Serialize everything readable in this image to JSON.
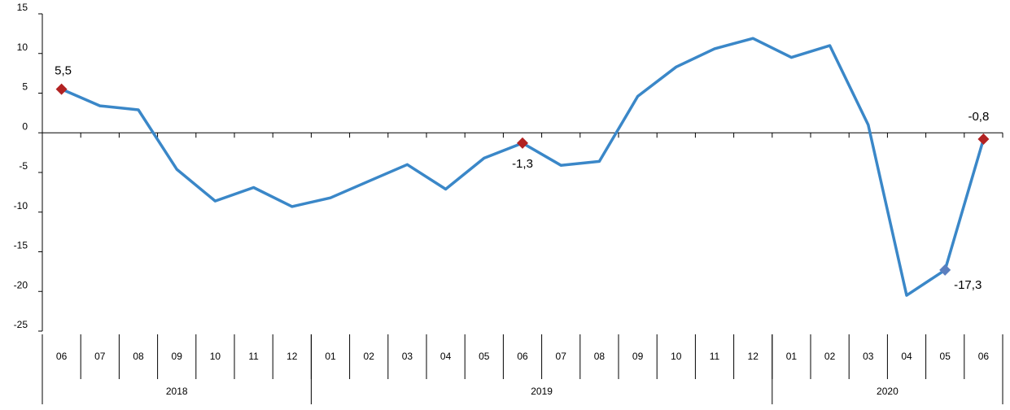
{
  "chart_data": {
    "type": "line",
    "title": "",
    "xlabel": "",
    "ylabel": "",
    "ylim": [
      -25,
      15
    ],
    "yticks": [
      15,
      10,
      5,
      0,
      -5,
      -10,
      -15,
      -20,
      -25
    ],
    "grid": false,
    "x": [
      "06",
      "07",
      "08",
      "09",
      "10",
      "11",
      "12",
      "01",
      "02",
      "03",
      "04",
      "05",
      "06",
      "07",
      "08",
      "09",
      "10",
      "11",
      "12",
      "01",
      "02",
      "03",
      "04",
      "05",
      "06"
    ],
    "year_groups": [
      {
        "label": "2018",
        "count": 7
      },
      {
        "label": "2019",
        "count": 12
      },
      {
        "label": "2020",
        "count": 6
      }
    ],
    "series": [
      {
        "color": "#3a87c8",
        "values": [
          5.5,
          3.4,
          2.9,
          -4.6,
          -8.6,
          -6.9,
          -9.3,
          -8.2,
          -6.1,
          -4.0,
          -7.1,
          -3.2,
          -1.3,
          -4.1,
          -3.6,
          4.6,
          8.3,
          10.6,
          11.9,
          9.5,
          11.0,
          1.0,
          -20.5,
          -17.3,
          -0.8
        ]
      }
    ],
    "marker_color": "#b22222",
    "marker_color_alt": "#5b7fbf",
    "highlights": [
      {
        "index": 0,
        "label": "5,5",
        "marker": "red"
      },
      {
        "index": 12,
        "label": "-1,3",
        "marker": "red"
      },
      {
        "index": 23,
        "label": "-17,3",
        "marker": "blue"
      },
      {
        "index": 24,
        "label": "-0,8",
        "marker": "red"
      }
    ]
  }
}
